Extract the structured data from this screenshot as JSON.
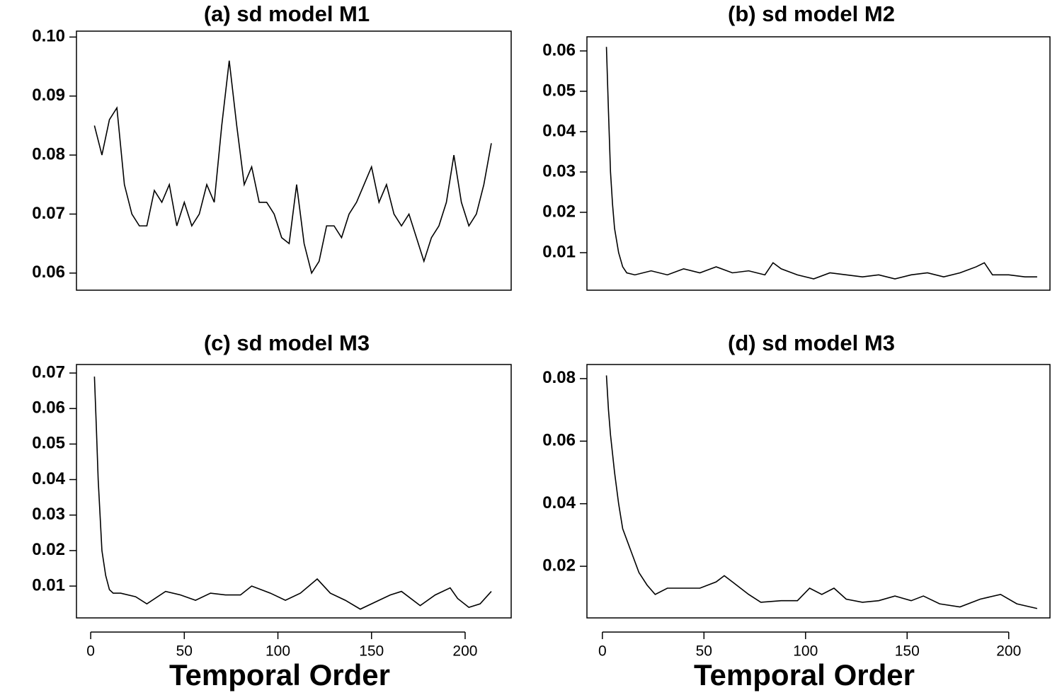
{
  "chart_data": [
    {
      "type": "line",
      "title": "(a) sd model M1",
      "color": "#000000",
      "x": [
        2,
        6,
        10,
        14,
        18,
        22,
        26,
        30,
        34,
        38,
        42,
        46,
        50,
        54,
        58,
        62,
        66,
        70,
        74,
        78,
        82,
        86,
        90,
        94,
        98,
        102,
        106,
        110,
        114,
        118,
        122,
        126,
        130,
        134,
        138,
        142,
        146,
        150,
        154,
        158,
        162,
        166,
        170,
        174,
        178,
        182,
        186,
        190,
        194,
        198,
        202,
        206,
        210,
        214
      ],
      "values": [
        0.085,
        0.08,
        0.086,
        0.088,
        0.075,
        0.07,
        0.068,
        0.068,
        0.074,
        0.072,
        0.075,
        0.068,
        0.072,
        0.068,
        0.07,
        0.075,
        0.072,
        0.085,
        0.096,
        0.085,
        0.075,
        0.078,
        0.072,
        0.072,
        0.07,
        0.066,
        0.065,
        0.075,
        0.065,
        0.06,
        0.062,
        0.068,
        0.068,
        0.066,
        0.07,
        0.072,
        0.075,
        0.078,
        0.072,
        0.075,
        0.07,
        0.068,
        0.07,
        0.066,
        0.062,
        0.066,
        0.068,
        0.072,
        0.08,
        0.072,
        0.068,
        0.07,
        0.075,
        0.082
      ],
      "xlim": [
        -7.6,
        224.6
      ],
      "ylim": [
        0.0571,
        0.101
      ],
      "yticks": [
        {
          "value": 0.1,
          "label": "0.10"
        },
        0.09,
        0.08,
        0.07,
        0.06
      ]
    },
    {
      "type": "line",
      "title": "(b) sd model M2",
      "color": "#000000",
      "x": [
        2,
        3,
        4,
        5,
        6,
        8,
        10,
        12,
        16,
        24,
        32,
        40,
        48,
        56,
        64,
        72,
        80,
        84,
        88,
        96,
        104,
        112,
        120,
        128,
        136,
        144,
        152,
        160,
        168,
        176,
        184,
        188,
        192,
        200,
        208,
        214
      ],
      "values": [
        0.061,
        0.045,
        0.03,
        0.022,
        0.016,
        0.01,
        0.0065,
        0.005,
        0.0045,
        0.0055,
        0.0045,
        0.006,
        0.005,
        0.0065,
        0.005,
        0.0055,
        0.0045,
        0.0075,
        0.006,
        0.0045,
        0.0035,
        0.005,
        0.0045,
        0.004,
        0.0045,
        0.0035,
        0.0045,
        0.005,
        0.004,
        0.005,
        0.0065,
        0.0075,
        0.0045,
        0.0045,
        0.004,
        0.004
      ],
      "xlim": [
        -7.6,
        220.3
      ],
      "ylim": [
        0.0007,
        0.0635
      ],
      "yticks": [
        0.01,
        0.02,
        0.03,
        0.04,
        0.05,
        0.06
      ]
    },
    {
      "type": "line",
      "title": "(c) sd model M3",
      "color": "#000000",
      "xlabel": "Temporal Order",
      "x": [
        2,
        3,
        4,
        5,
        6,
        8,
        10,
        12,
        16,
        24,
        30,
        40,
        48,
        56,
        64,
        72,
        80,
        86,
        96,
        104,
        112,
        121,
        128,
        136,
        144,
        152,
        160,
        166,
        176,
        184,
        192,
        196,
        202,
        208,
        214
      ],
      "values": [
        0.069,
        0.055,
        0.04,
        0.03,
        0.02,
        0.013,
        0.009,
        0.008,
        0.008,
        0.007,
        0.005,
        0.0085,
        0.0075,
        0.006,
        0.008,
        0.0075,
        0.0075,
        0.01,
        0.008,
        0.006,
        0.008,
        0.012,
        0.008,
        0.006,
        0.0035,
        0.0055,
        0.0075,
        0.0085,
        0.0045,
        0.0075,
        0.0095,
        0.0065,
        0.004,
        0.005,
        0.0085
      ],
      "xlim": [
        -7.6,
        224.6
      ],
      "ylim": [
        0.00104,
        0.0724
      ],
      "xticks": [
        0,
        50,
        100,
        150,
        200
      ],
      "yticks": [
        0.01,
        0.02,
        0.03,
        0.04,
        0.05,
        0.06,
        0.07
      ]
    },
    {
      "type": "line",
      "title": "(d) sd model M3",
      "color": "#000000",
      "xlabel": "Temporal Order",
      "x": [
        2,
        3,
        4,
        6,
        8,
        10,
        14,
        18,
        22,
        26,
        32,
        40,
        48,
        56,
        60,
        64,
        72,
        78,
        88,
        96,
        102,
        108,
        114,
        120,
        128,
        136,
        144,
        152,
        158,
        166,
        176,
        186,
        196,
        204,
        214
      ],
      "values": [
        0.081,
        0.07,
        0.062,
        0.05,
        0.04,
        0.032,
        0.025,
        0.018,
        0.014,
        0.011,
        0.013,
        0.013,
        0.013,
        0.015,
        0.017,
        0.015,
        0.011,
        0.0085,
        0.009,
        0.009,
        0.013,
        0.011,
        0.013,
        0.0095,
        0.0085,
        0.009,
        0.0105,
        0.009,
        0.0105,
        0.008,
        0.007,
        0.0095,
        0.011,
        0.008,
        0.0065
      ],
      "xlim": [
        -7.6,
        220.3
      ],
      "ylim": [
        0.0035,
        0.0845
      ],
      "xticks": [
        0,
        50,
        100,
        150,
        200
      ],
      "yticks": [
        0.02,
        0.04,
        0.06,
        0.08
      ]
    }
  ]
}
